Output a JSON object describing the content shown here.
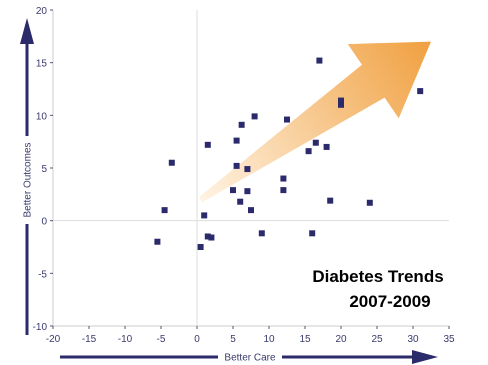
{
  "chart_data": {
    "type": "scatter",
    "title_lines": [
      "Diabetes Trends",
      "2007-2009"
    ],
    "xlabel": "Better Care",
    "ylabel": "Better Outcomes",
    "xlim": [
      -20,
      35
    ],
    "ylim": [
      -10,
      20
    ],
    "xticks": [
      -20,
      -15,
      -10,
      -5,
      0,
      5,
      10,
      15,
      20,
      25,
      30,
      35
    ],
    "yticks": [
      -10,
      -5,
      0,
      5,
      10,
      15,
      20
    ],
    "grid": false,
    "trend_arrow": {
      "from": [
        0.5,
        2.0
      ],
      "to": [
        32.5,
        17.0
      ]
    },
    "colors": {
      "points": "#2b2a6b",
      "axis": "#2b2a6b",
      "arrow_start": "#fff3e3",
      "arrow_end": "#f0a040",
      "title": "#000000"
    },
    "points": [
      [
        -5.5,
        -2.0
      ],
      [
        -4.5,
        1.0
      ],
      [
        -3.5,
        5.5
      ],
      [
        0.5,
        -2.5
      ],
      [
        1.0,
        0.5
      ],
      [
        1.5,
        -1.5
      ],
      [
        2.0,
        -1.6
      ],
      [
        1.5,
        7.2
      ],
      [
        5.0,
        2.9
      ],
      [
        5.5,
        5.2
      ],
      [
        5.5,
        7.6
      ],
      [
        6.0,
        1.8
      ],
      [
        6.2,
        9.1
      ],
      [
        7.0,
        2.8
      ],
      [
        7.0,
        4.9
      ],
      [
        7.5,
        1.0
      ],
      [
        8.0,
        9.9
      ],
      [
        9.0,
        -1.2
      ],
      [
        12.0,
        4.0
      ],
      [
        12.0,
        2.9
      ],
      [
        12.5,
        9.6
      ],
      [
        15.5,
        6.6
      ],
      [
        16.0,
        -1.2
      ],
      [
        16.5,
        7.4
      ],
      [
        17.0,
        15.2
      ],
      [
        18.0,
        7.0
      ],
      [
        18.5,
        1.9
      ],
      [
        20.0,
        11.0
      ],
      [
        20.0,
        11.4
      ],
      [
        24.0,
        1.7
      ],
      [
        31.0,
        12.3
      ]
    ]
  }
}
